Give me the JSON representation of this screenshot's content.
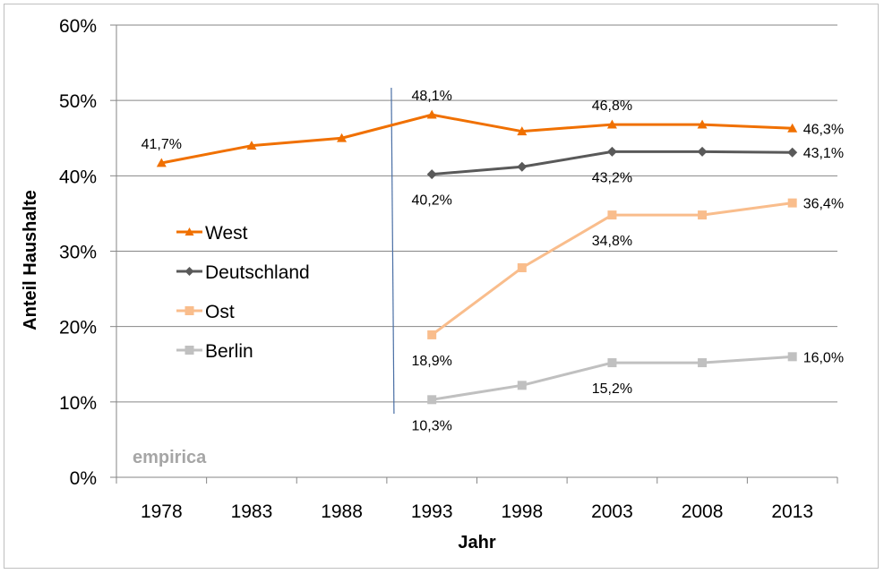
{
  "chart_data": {
    "type": "line",
    "xlabel": "Jahr",
    "ylabel": "Anteil Haushalte",
    "categories": [
      "1978",
      "1983",
      "1988",
      "1993",
      "1998",
      "2003",
      "2008",
      "2013"
    ],
    "ylim": [
      0,
      60
    ],
    "yticks": [
      "0%",
      "10%",
      "20%",
      "30%",
      "40%",
      "50%",
      "60%"
    ],
    "grid": "horizontal",
    "legend_position": "left",
    "watermark": "empirica",
    "series": [
      {
        "name": "West",
        "color": "#f07000",
        "marker": "triangle",
        "values": [
          41.7,
          44.0,
          45.0,
          48.1,
          45.9,
          46.8,
          46.8,
          46.3
        ],
        "labels": [
          "41,7%",
          "",
          "",
          "48,1%",
          "",
          "46,8%",
          "",
          "46,3%"
        ]
      },
      {
        "name": "Deutschland",
        "color": "#595959",
        "marker": "diamond",
        "values": [
          null,
          null,
          null,
          40.2,
          41.2,
          43.2,
          43.2,
          43.1
        ],
        "labels": [
          "",
          "",
          "",
          "40,2%",
          "",
          "43,2%",
          "",
          "43,1%"
        ]
      },
      {
        "name": "Ost",
        "color": "#f9bd8c",
        "marker": "square",
        "values": [
          null,
          null,
          null,
          18.9,
          27.8,
          34.8,
          34.8,
          36.4
        ],
        "labels": [
          "",
          "",
          "",
          "18,9%",
          "",
          "34,8%",
          "",
          "36,4%"
        ]
      },
      {
        "name": "Berlin",
        "color": "#c0c0c0",
        "marker": "square",
        "values": [
          null,
          null,
          null,
          10.3,
          12.2,
          15.2,
          15.2,
          16.0
        ],
        "labels": [
          "",
          "",
          "",
          "10,3%",
          "",
          "15,2%",
          "",
          "16,0%"
        ]
      }
    ]
  }
}
